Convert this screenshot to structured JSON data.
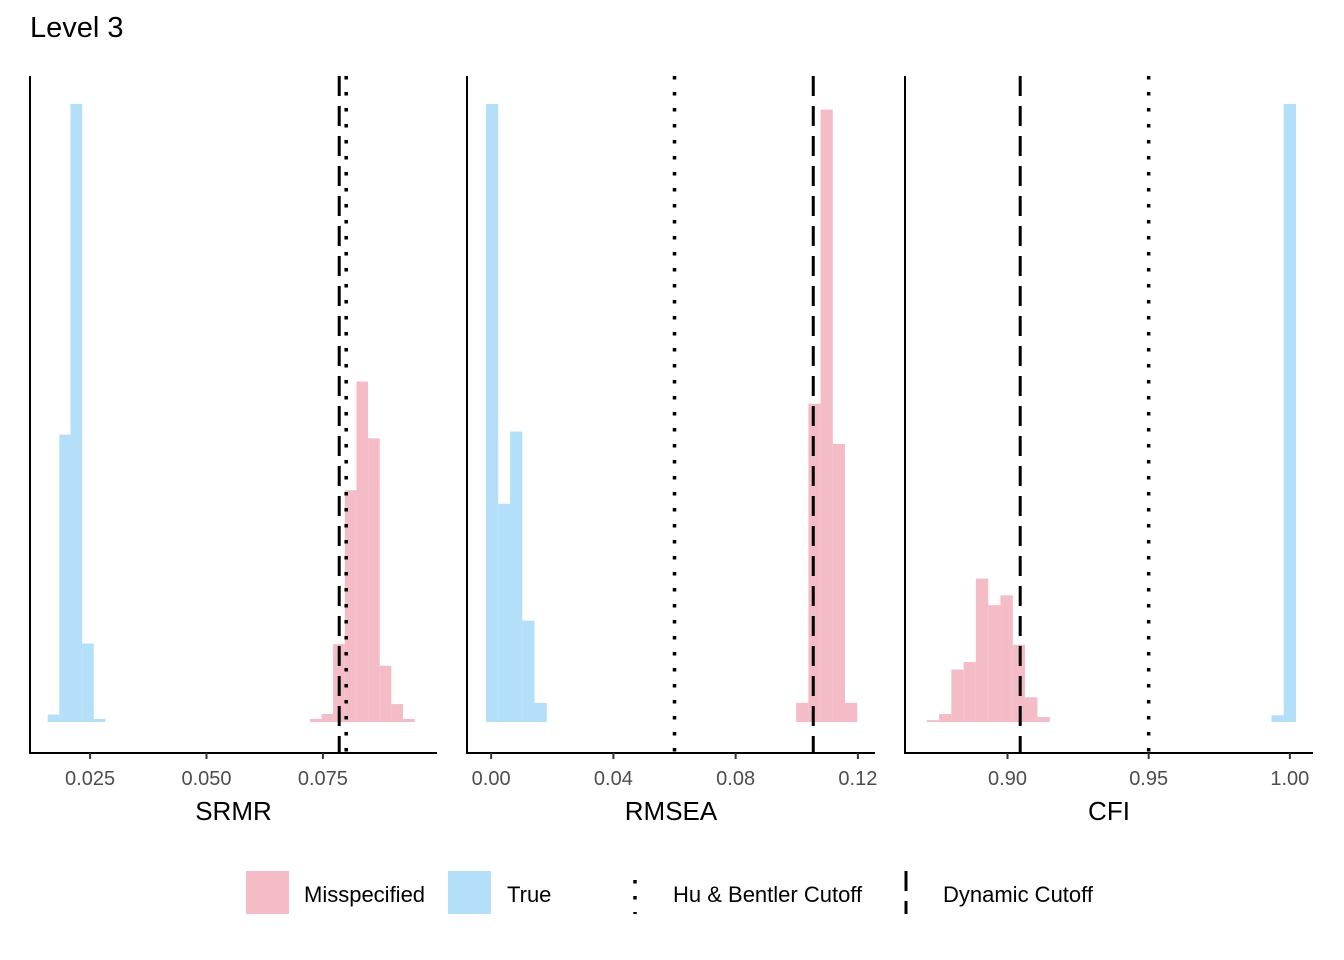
{
  "title": "Level 3",
  "colors": {
    "misspecified": "#F4BCC7",
    "true": "#B3DFF8",
    "line": "#000000"
  },
  "legend": {
    "items": [
      {
        "key": "misspecified",
        "label": "Misspecified",
        "type": "fill"
      },
      {
        "key": "true",
        "label": "True",
        "type": "fill"
      },
      {
        "key": "hu_bentler",
        "label": "Hu & Bentler Cutoff",
        "type": "dotted"
      },
      {
        "key": "dynamic",
        "label": "Dynamic Cutoff",
        "type": "dashed"
      }
    ],
    "position": "bottom"
  },
  "chart_data": [
    {
      "type": "histogram",
      "panel": "SRMR",
      "xlabel": "SRMR",
      "xticks": [
        0.025,
        0.05,
        0.075
      ],
      "xtick_labels": [
        "0.025",
        "0.050",
        "0.075"
      ],
      "xlim": [
        0.0121,
        0.0995
      ],
      "ylim": [
        0,
        1.05
      ],
      "bin_width": 0.0025,
      "series": [
        {
          "name": "True",
          "key": "true",
          "bins": [
            [
              0.0159,
              0.0184,
              0.012
            ],
            [
              0.0184,
              0.0208,
              0.465
            ],
            [
              0.0208,
              0.0233,
              1.0
            ],
            [
              0.0233,
              0.0258,
              0.127
            ],
            [
              0.0258,
              0.0283,
              0.005
            ]
          ]
        },
        {
          "name": "Misspecified",
          "key": "misspecified",
          "bins": [
            [
              0.0722,
              0.0747,
              0.005
            ],
            [
              0.0747,
              0.0772,
              0.013
            ],
            [
              0.0772,
              0.0797,
              0.126
            ],
            [
              0.0797,
              0.0822,
              0.375
            ],
            [
              0.0822,
              0.0847,
              0.551
            ],
            [
              0.0847,
              0.0872,
              0.459
            ],
            [
              0.0872,
              0.0897,
              0.091
            ],
            [
              0.0897,
              0.0922,
              0.029
            ],
            [
              0.0922,
              0.0947,
              0.005
            ]
          ]
        }
      ],
      "cutoffs": {
        "hu_bentler": 0.08,
        "dynamic": 0.0785
      }
    },
    {
      "type": "histogram",
      "panel": "RMSEA",
      "xlabel": "RMSEA",
      "xticks": [
        0.0,
        0.04,
        0.08,
        0.12
      ],
      "xtick_labels": [
        "0.00",
        "0.04",
        "0.08",
        "0.12"
      ],
      "xlim": [
        -0.0079,
        0.1256
      ],
      "ylim": [
        0,
        1.05
      ],
      "bin_width": 0.004,
      "series": [
        {
          "name": "True",
          "key": "true",
          "bins": [
            [
              -0.0017,
              0.0023,
              1.0
            ],
            [
              0.0023,
              0.0062,
              0.353
            ],
            [
              0.0062,
              0.0102,
              0.47
            ],
            [
              0.0102,
              0.0142,
              0.164
            ],
            [
              0.0142,
              0.0182,
              0.031
            ]
          ]
        },
        {
          "name": "Misspecified",
          "key": "misspecified",
          "bins": [
            [
              0.0998,
              0.1038,
              0.031
            ],
            [
              0.1038,
              0.1078,
              0.515
            ],
            [
              0.1078,
              0.1118,
              0.991
            ],
            [
              0.1118,
              0.1158,
              0.45
            ],
            [
              0.1158,
              0.1198,
              0.031
            ]
          ]
        }
      ],
      "cutoffs": {
        "hu_bentler": 0.06,
        "dynamic": 0.1054
      }
    },
    {
      "type": "histogram",
      "panel": "CFI",
      "xlabel": "CFI",
      "xticks": [
        0.9,
        0.95,
        1.0
      ],
      "xtick_labels": [
        "0.90",
        "0.95",
        "1.00"
      ],
      "xlim": [
        0.8637,
        1.0082
      ],
      "ylim": [
        0,
        1.05
      ],
      "bin_width": 0.0043,
      "series": [
        {
          "name": "Misspecified",
          "key": "misspecified",
          "bins": [
            [
              0.8714,
              0.8758,
              0.003
            ],
            [
              0.8758,
              0.8801,
              0.013
            ],
            [
              0.8801,
              0.8845,
              0.085
            ],
            [
              0.8845,
              0.8888,
              0.097
            ],
            [
              0.8888,
              0.8932,
              0.232
            ],
            [
              0.8932,
              0.8975,
              0.189
            ],
            [
              0.8975,
              0.9019,
              0.205
            ],
            [
              0.9019,
              0.9062,
              0.125
            ],
            [
              0.9062,
              0.9106,
              0.04
            ],
            [
              0.9106,
              0.915,
              0.008
            ]
          ]
        },
        {
          "name": "True",
          "key": "true",
          "bins": [
            [
              0.9935,
              0.9978,
              0.011
            ],
            [
              0.9978,
              1.0022,
              1.0
            ]
          ]
        }
      ],
      "cutoffs": {
        "hu_bentler": 0.95,
        "dynamic": 0.9045
      }
    }
  ]
}
